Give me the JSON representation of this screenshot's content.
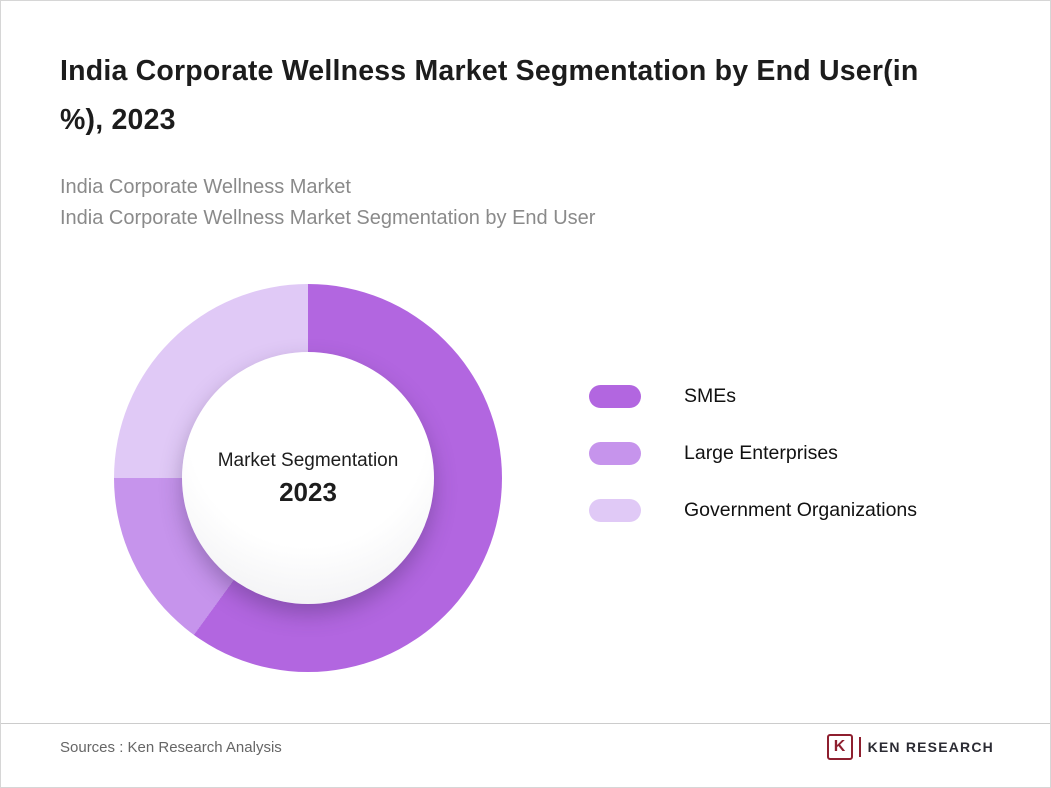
{
  "header": {
    "title": "India Corporate Wellness Market Segmentation by End User(in %), 2023",
    "subtitle_line1": "India Corporate Wellness Market",
    "subtitle_line2": "India Corporate Wellness Market Segmentation by End User"
  },
  "chart_data": {
    "type": "pie",
    "variant": "donut",
    "title": "India Corporate Wellness Market Segmentation by End User(in %), 2023",
    "categories": [
      "SMEs",
      "Large Enterprises",
      "Government Organizations"
    ],
    "values": [
      60,
      15,
      25
    ],
    "unit": "%",
    "colors": [
      "#b266e0",
      "#c694ec",
      "#e0c9f6"
    ],
    "start_angle_deg": 0,
    "direction": "clockwise",
    "center_label": "Market Segmentation",
    "center_year": "2023",
    "legend_position": "right"
  },
  "footer": {
    "sources": "Sources : Ken Research Analysis",
    "logo_letter": "K",
    "logo_text": "KEN RESEARCH"
  }
}
